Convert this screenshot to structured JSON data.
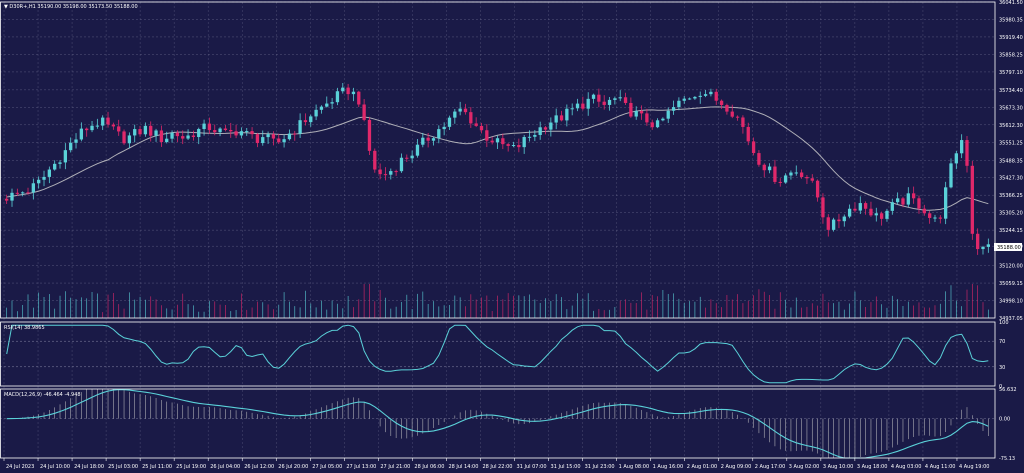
{
  "colors": {
    "background": "#1a1a47",
    "grid": "#8a8aa8",
    "bull": "#5ad1d8",
    "bear": "#e0286a",
    "ma_line": "#b0b0b8",
    "rsi_line": "#5ad1d8",
    "macd_line": "#5ad1d8",
    "macd_hist": "#c8c8c8",
    "panel_border": "#ffffff",
    "label_text": "#ffffff"
  },
  "main": {
    "header": "▼ D30R+,H1  35190.00 35198.00 35173.50 35188.00",
    "current_price_label": "35188.00"
  },
  "rsi": {
    "header": "RSI(14) 38.9865"
  },
  "macd": {
    "header": "MACD(12,26,9) -46.464 -4.948"
  },
  "chart_data": [
    {
      "type": "candlestick",
      "symbol": "D30R+",
      "timeframe": "H1",
      "ohlc_last": {
        "open": 35190.0,
        "high": 35198.0,
        "low": 35173.5,
        "close": 35188.0
      },
      "price_ticks": [
        "36041.50",
        "35980.35",
        "35919.40",
        "35858.25",
        "35797.10",
        "35734.40",
        "35673.30",
        "35612.30",
        "35551.25",
        "35488.35",
        "35427.30",
        "35366.25",
        "35305.20",
        "35244.15",
        "35188.00",
        "35120.00",
        "35059.15",
        "34998.10",
        "34937.05"
      ],
      "ylim": [
        34937.05,
        36041.5
      ],
      "x_tick_labels": [
        "24 Jul 2023",
        "24 Jul 10:00",
        "24 Jul 18:00",
        "25 Jul 03:00",
        "25 Jul 11:00",
        "25 Jul 19:00",
        "26 Jul 04:00",
        "26 Jul 12:00",
        "26 Jul 20:00",
        "27 Jul 05:00",
        "27 Jul 13:00",
        "27 Jul 21:00",
        "28 Jul 06:00",
        "28 Jul 14:00",
        "28 Jul 22:00",
        "31 Jul 07:00",
        "31 Jul 15:00",
        "31 Jul 23:00",
        "1 Aug 08:00",
        "1 Aug 16:00",
        "2 Aug 01:00",
        "2 Aug 09:00",
        "2 Aug 17:00",
        "3 Aug 02:00",
        "3 Aug 10:00",
        "3 Aug 18:00",
        "4 Aug 03:00",
        "4 Aug 11:00",
        "4 Aug 19:00"
      ],
      "closes": [
        35360,
        35365,
        35372,
        35378,
        35385,
        35395,
        35410,
        35430,
        35455,
        35475,
        35500,
        35520,
        35545,
        35565,
        35585,
        35600,
        35612,
        35620,
        35618,
        35605,
        35592,
        35575,
        35566,
        35570,
        35580,
        35590,
        35598,
        35588,
        35576,
        35565,
        35570,
        35582,
        35578,
        35568,
        35572,
        35585,
        35592,
        35598,
        35604,
        35596,
        35588,
        35580,
        35584,
        35592,
        35590,
        35578,
        35570,
        35565,
        35572,
        35560,
        35548,
        35552,
        35568,
        35582,
        35598,
        35612,
        35630,
        35648,
        35660,
        35672,
        35686,
        35700,
        35712,
        35724,
        35734,
        35720,
        35700,
        35610,
        35520,
        35460,
        35436,
        35440,
        35452,
        35470,
        35488,
        35502,
        35515,
        35530,
        35548,
        35566,
        35582,
        35596,
        35610,
        35630,
        35648,
        35664,
        35652,
        35632,
        35610,
        35590,
        35570,
        35560,
        35548,
        35540,
        35532,
        35528,
        35540,
        35556,
        35572,
        35586,
        35600,
        35614,
        35626,
        35630,
        35640,
        35652,
        35664,
        35676,
        35686,
        35696,
        35700,
        35690,
        35680,
        35694,
        35700,
        35690,
        35672,
        35660,
        35648,
        35636,
        35628,
        35618,
        35608,
        35630,
        35652,
        35670,
        35686,
        35700,
        35712,
        35722,
        35730,
        35724,
        35712,
        35700,
        35690,
        35678,
        35660,
        35636,
        35604,
        35560,
        35520,
        35490,
        35470,
        35448,
        35430,
        35422,
        35434,
        35446,
        35452,
        35446,
        35430,
        35400,
        35360,
        35300,
        35258,
        35262,
        35282,
        35304,
        35318,
        35330,
        35338,
        35324,
        35310,
        35292,
        35296,
        35310,
        35326,
        35338,
        35348,
        35354,
        35346,
        35334,
        35316,
        35290,
        35276,
        35300,
        35380,
        35460,
        35520,
        35560,
        35480,
        35240,
        35188,
        35176,
        35188
      ],
      "sma_period": 20,
      "volume_note": "tick volume histogram in lower part of main panel"
    },
    {
      "type": "line",
      "name": "RSI(14)",
      "last_value": 38.9865,
      "levels": [
        70,
        30
      ],
      "y_ticks": [
        "100",
        "70",
        "30",
        "0"
      ],
      "ylim": [
        0,
        100
      ]
    },
    {
      "type": "line+histogram",
      "name": "MACD(12,26,9)",
      "last_values": [
        -46.464,
        -4.948
      ],
      "y_ticks": [
        "56.632",
        "0.00",
        "-75.13"
      ],
      "ylim": [
        -75.13,
        56.632
      ]
    }
  ]
}
